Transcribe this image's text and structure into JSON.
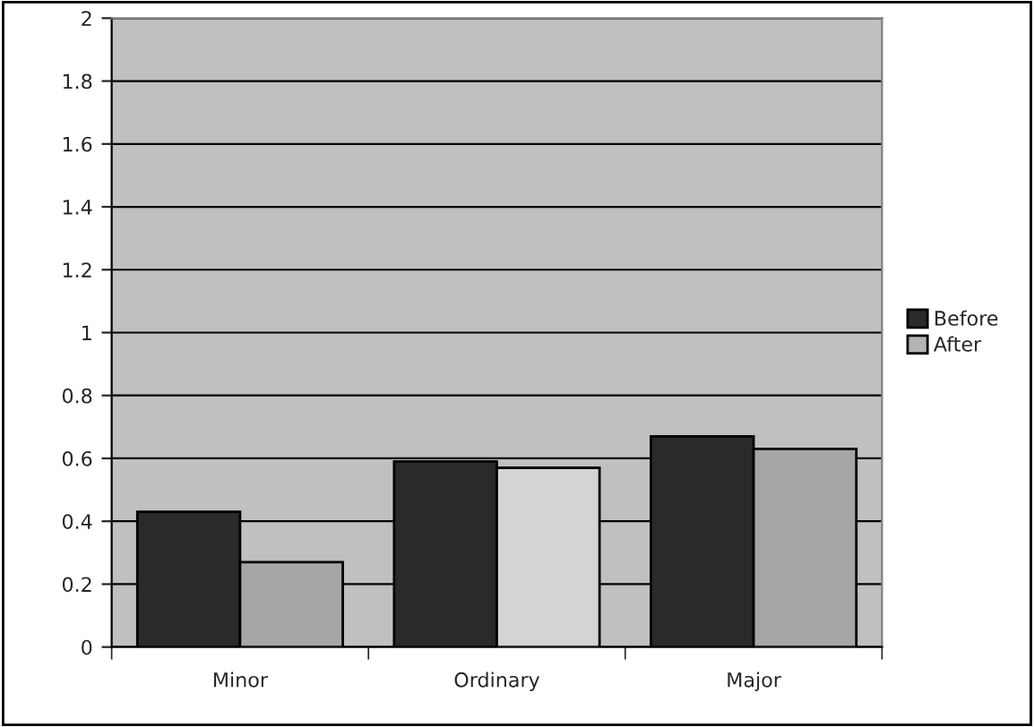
{
  "chart_data": {
    "type": "bar",
    "categories": [
      "Minor",
      "Ordinary",
      "Major"
    ],
    "series": [
      {
        "name": "Before",
        "color": "#2a2a2a",
        "values": [
          0.43,
          0.59,
          0.67
        ]
      },
      {
        "name": "After",
        "color": "#b4b4b4",
        "colors": [
          "#a6a6a6",
          "#d4d4d4",
          "#a6a6a6"
        ],
        "values": [
          0.27,
          0.57,
          0.63
        ]
      }
    ],
    "ylim": [
      0,
      2
    ],
    "yticks": [
      0,
      0.2,
      0.4,
      0.6,
      0.8,
      1,
      1.2,
      1.4,
      1.6,
      1.8,
      2
    ],
    "grid": "y",
    "legend": "right"
  }
}
